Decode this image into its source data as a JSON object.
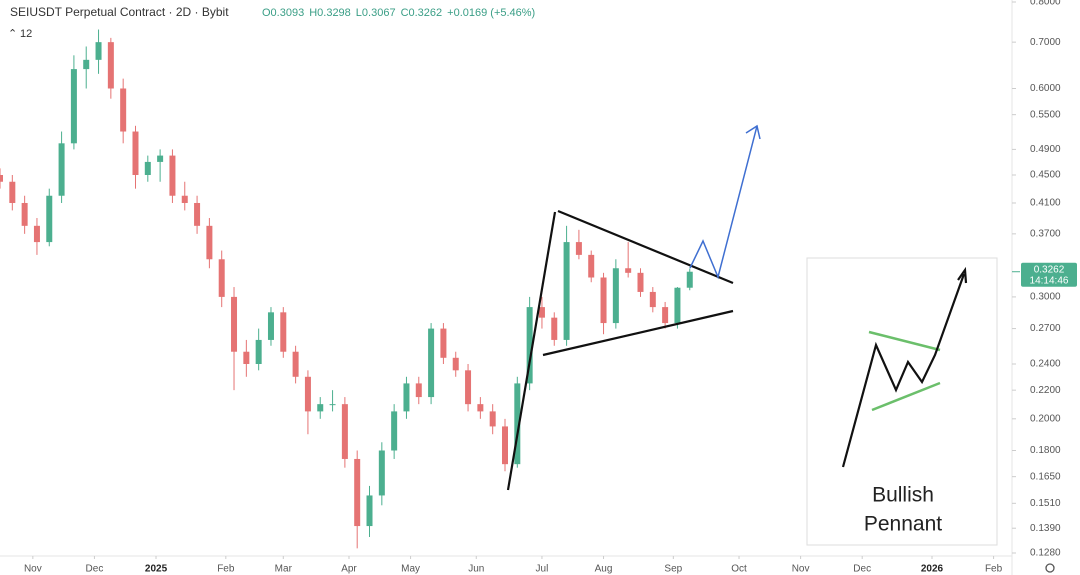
{
  "chart_data": {
    "type": "candlestick",
    "header": {
      "symbol": "SEIUSDT Perpetual Contract · 2D · Bybit",
      "values": [
        "O0.3093",
        "H0.3298",
        "L0.3067",
        "C0.3262",
        "+0.0169 (+5.46%)"
      ],
      "indicator": "12"
    },
    "x": [
      0,
      3,
      6,
      9,
      12,
      15,
      18,
      21,
      24,
      27,
      30,
      33,
      36,
      39,
      42,
      45,
      48,
      51,
      54,
      57,
      60,
      63,
      66,
      69,
      72,
      75,
      78,
      81,
      84,
      87,
      90,
      93,
      96,
      99,
      102,
      105,
      108,
      111,
      114,
      117,
      120,
      123,
      126,
      129,
      132,
      135,
      138,
      141,
      144,
      147,
      150,
      153,
      156,
      159,
      162,
      165,
      168
    ],
    "ohlc": [
      [
        0.45,
        0.46,
        0.43,
        0.44
      ],
      [
        0.44,
        0.45,
        0.4,
        0.41
      ],
      [
        0.41,
        0.42,
        0.37,
        0.38
      ],
      [
        0.38,
        0.39,
        0.345,
        0.36
      ],
      [
        0.36,
        0.43,
        0.355,
        0.42
      ],
      [
        0.42,
        0.52,
        0.41,
        0.5
      ],
      [
        0.5,
        0.67,
        0.49,
        0.64
      ],
      [
        0.64,
        0.69,
        0.6,
        0.66
      ],
      [
        0.66,
        0.73,
        0.63,
        0.7
      ],
      [
        0.7,
        0.71,
        0.58,
        0.6
      ],
      [
        0.6,
        0.62,
        0.5,
        0.52
      ],
      [
        0.52,
        0.53,
        0.43,
        0.45
      ],
      [
        0.45,
        0.48,
        0.44,
        0.47
      ],
      [
        0.47,
        0.49,
        0.44,
        0.48
      ],
      [
        0.48,
        0.49,
        0.41,
        0.42
      ],
      [
        0.42,
        0.44,
        0.4,
        0.41
      ],
      [
        0.41,
        0.42,
        0.37,
        0.38
      ],
      [
        0.38,
        0.39,
        0.33,
        0.34
      ],
      [
        0.34,
        0.35,
        0.29,
        0.3
      ],
      [
        0.3,
        0.31,
        0.22,
        0.25
      ],
      [
        0.25,
        0.26,
        0.23,
        0.24
      ],
      [
        0.24,
        0.27,
        0.235,
        0.26
      ],
      [
        0.26,
        0.29,
        0.255,
        0.285
      ],
      [
        0.285,
        0.29,
        0.245,
        0.25
      ],
      [
        0.25,
        0.255,
        0.225,
        0.23
      ],
      [
        0.23,
        0.235,
        0.19,
        0.205
      ],
      [
        0.205,
        0.215,
        0.2,
        0.21
      ],
      [
        0.21,
        0.22,
        0.205,
        0.21
      ],
      [
        0.21,
        0.215,
        0.17,
        0.175
      ],
      [
        0.175,
        0.18,
        0.13,
        0.14
      ],
      [
        0.14,
        0.16,
        0.135,
        0.155
      ],
      [
        0.155,
        0.185,
        0.15,
        0.18
      ],
      [
        0.18,
        0.21,
        0.175,
        0.205
      ],
      [
        0.205,
        0.23,
        0.2,
        0.225
      ],
      [
        0.225,
        0.23,
        0.21,
        0.215
      ],
      [
        0.215,
        0.275,
        0.21,
        0.27
      ],
      [
        0.27,
        0.275,
        0.24,
        0.245
      ],
      [
        0.245,
        0.25,
        0.23,
        0.235
      ],
      [
        0.235,
        0.24,
        0.205,
        0.21
      ],
      [
        0.21,
        0.215,
        0.2,
        0.205
      ],
      [
        0.205,
        0.21,
        0.19,
        0.195
      ],
      [
        0.195,
        0.2,
        0.168,
        0.172
      ],
      [
        0.172,
        0.23,
        0.17,
        0.225
      ],
      [
        0.225,
        0.3,
        0.22,
        0.29
      ],
      [
        0.29,
        0.3,
        0.27,
        0.28
      ],
      [
        0.28,
        0.285,
        0.255,
        0.26
      ],
      [
        0.26,
        0.38,
        0.255,
        0.36
      ],
      [
        0.36,
        0.375,
        0.34,
        0.345
      ],
      [
        0.345,
        0.35,
        0.315,
        0.32
      ],
      [
        0.32,
        0.325,
        0.265,
        0.275
      ],
      [
        0.275,
        0.34,
        0.27,
        0.33
      ],
      [
        0.33,
        0.36,
        0.32,
        0.325
      ],
      [
        0.325,
        0.33,
        0.3,
        0.305
      ],
      [
        0.305,
        0.31,
        0.285,
        0.29
      ],
      [
        0.29,
        0.295,
        0.27,
        0.275
      ],
      [
        0.275,
        0.31,
        0.27,
        0.3093
      ],
      [
        0.3093,
        0.3298,
        0.3067,
        0.3262
      ]
    ],
    "up_color": "#4caf8f",
    "down_color": "#e57373",
    "xlim": [
      0,
      246
    ],
    "xticks": [
      {
        "value": 8,
        "label": "Nov"
      },
      {
        "value": 23,
        "label": "Dec"
      },
      {
        "value": 38,
        "label": "2025"
      },
      {
        "value": 55,
        "label": "Feb"
      },
      {
        "value": 69,
        "label": "Mar"
      },
      {
        "value": 85,
        "label": "Apr"
      },
      {
        "value": 100,
        "label": "May"
      },
      {
        "value": 116,
        "label": "Jun"
      },
      {
        "value": 132,
        "label": "Jul"
      },
      {
        "value": 147,
        "label": "Aug"
      },
      {
        "value": 164,
        "label": "Sep"
      },
      {
        "value": 180,
        "label": "Oct"
      },
      {
        "value": 195,
        "label": "Nov"
      },
      {
        "value": 210,
        "label": "Dec"
      },
      {
        "value": 227,
        "label": "2026"
      },
      {
        "value": 242,
        "label": "Feb"
      }
    ],
    "ylim": [
      0.128,
      0.8
    ],
    "log_scale": true,
    "yticks": [
      {
        "value": 0.8,
        "label": "0.8000"
      },
      {
        "value": 0.7,
        "label": "0.7000"
      },
      {
        "value": 0.6,
        "label": "0.6000"
      },
      {
        "value": 0.55,
        "label": "0.5500"
      },
      {
        "value": 0.49,
        "label": "0.4900"
      },
      {
        "value": 0.45,
        "label": "0.4500"
      },
      {
        "value": 0.41,
        "label": "0.4100"
      },
      {
        "value": 0.37,
        "label": "0.3700"
      },
      {
        "value": 0.3,
        "label": "0.3000"
      },
      {
        "value": 0.27,
        "label": "0.2700"
      },
      {
        "value": 0.24,
        "label": "0.2400"
      },
      {
        "value": 0.22,
        "label": "0.2200"
      },
      {
        "value": 0.2,
        "label": "0.2000"
      },
      {
        "value": 0.18,
        "label": "0.1800"
      },
      {
        "value": 0.165,
        "label": "0.1650"
      },
      {
        "value": 0.151,
        "label": "0.1510"
      },
      {
        "value": 0.139,
        "label": "0.1390"
      },
      {
        "value": 0.128,
        "label": "0.1280"
      }
    ],
    "last_price": {
      "value": 0.3262,
      "label": "0.3262",
      "countdown": "14:14:46"
    },
    "inset": {
      "title_line1": "Bullish",
      "title_line2": "Pennant"
    }
  }
}
